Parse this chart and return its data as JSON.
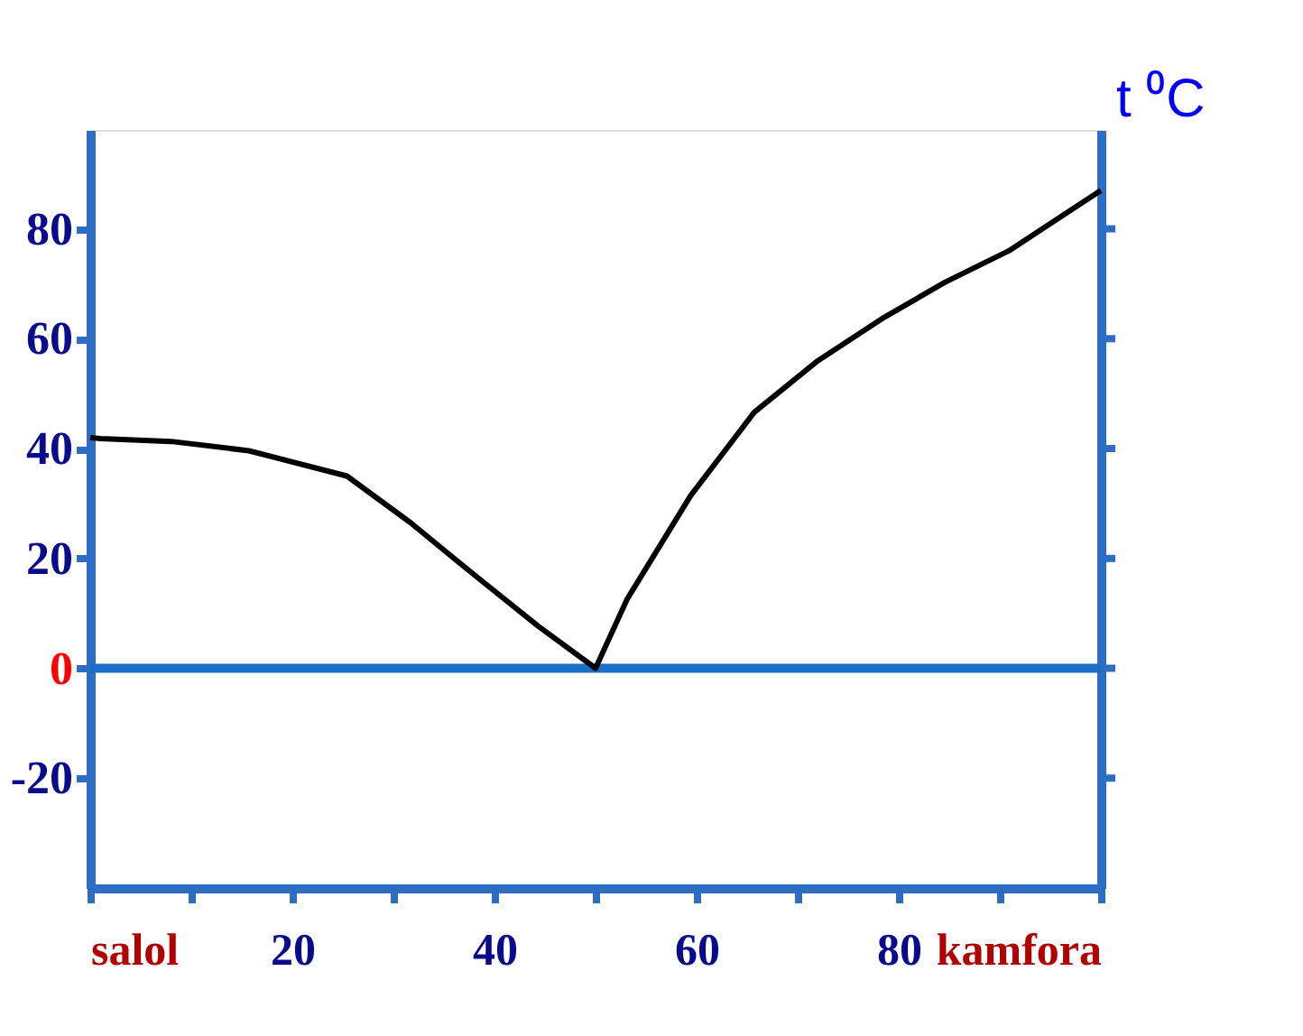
{
  "chart_data": {
    "type": "line",
    "x": [
      0,
      1,
      8,
      15.7,
      25.4,
      31.7,
      38,
      44.3,
      50,
      53.1,
      59.4,
      65.7,
      72,
      78.3,
      84.6,
      90.9,
      100
    ],
    "series": [
      {
        "color": "#000000",
        "values": [
          42,
          41.8,
          41.3,
          39.6,
          35,
          26.5,
          17,
          7.7,
          0,
          12.5,
          31.4,
          46.6,
          56,
          63.6,
          70.3,
          76,
          87
        ]
      }
    ],
    "xlim": [
      0,
      100
    ],
    "xticks": [
      {
        "value": 0,
        "label": "salol"
      },
      {
        "value": 10,
        "label": null
      },
      20,
      {
        "value": 30,
        "label": null
      },
      40,
      {
        "value": 50,
        "label": null
      },
      60,
      {
        "value": 70,
        "label": null
      },
      80,
      {
        "value": 90,
        "label": null
      },
      {
        "value": 100,
        "label": "kamfora"
      }
    ],
    "ylim": [
      -40,
      98
    ],
    "yticks": [
      -20,
      0,
      20,
      40,
      60,
      80
    ],
    "ylabel": "t ⁰C",
    "ref_lines": [
      {
        "axis": "y",
        "value": 0,
        "label": null,
        "color": "#1a6fc4"
      }
    ],
    "marker": "none",
    "line_style": "solid"
  }
}
